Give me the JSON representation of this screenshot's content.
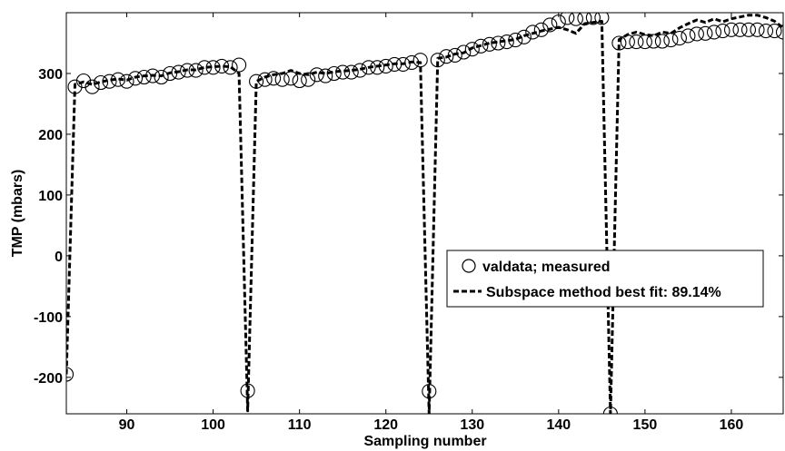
{
  "chart_data": {
    "type": "line",
    "title": "",
    "xlabel": "Sampling number",
    "ylabel": "TMP (mbars)",
    "xlim": [
      83,
      166
    ],
    "ylim": [
      -260,
      400
    ],
    "xticks": [
      90,
      100,
      110,
      120,
      130,
      140,
      150,
      160
    ],
    "yticks": [
      -200,
      -100,
      0,
      100,
      200,
      300
    ],
    "grid": false,
    "legend_position": "center-right",
    "series": [
      {
        "name": "valdata; measured",
        "style": "circle-markers",
        "color": "#000000",
        "x": [
          83,
          84,
          85,
          86,
          87,
          88,
          89,
          90,
          91,
          92,
          93,
          94,
          95,
          96,
          97,
          98,
          99,
          100,
          101,
          102,
          103,
          104,
          105,
          106,
          107,
          108,
          109,
          110,
          111,
          112,
          113,
          114,
          115,
          116,
          117,
          118,
          119,
          120,
          121,
          122,
          123,
          124,
          125,
          126,
          127,
          128,
          129,
          130,
          131,
          132,
          133,
          134,
          135,
          136,
          137,
          138,
          139,
          140,
          141,
          142,
          143,
          144,
          145,
          146,
          147,
          148,
          149,
          150,
          151,
          152,
          153,
          154,
          155,
          156,
          157,
          158,
          159,
          160,
          161,
          162,
          163,
          164,
          165,
          166
        ],
        "y": [
          -195,
          278,
          288,
          278,
          285,
          287,
          290,
          287,
          292,
          294,
          296,
          294,
          300,
          302,
          305,
          305,
          310,
          310,
          312,
          310,
          314,
          -222,
          287,
          290,
          292,
          290,
          292,
          288,
          290,
          298,
          296,
          300,
          302,
          302,
          305,
          310,
          310,
          312,
          315,
          315,
          318,
          322,
          -223,
          322,
          328,
          330,
          335,
          340,
          345,
          348,
          350,
          352,
          355,
          360,
          368,
          372,
          380,
          385,
          392,
          390,
          391,
          392,
          392,
          -260,
          350,
          352,
          352,
          352,
          353,
          353,
          355,
          358,
          362,
          365,
          366,
          368,
          370,
          372,
          372,
          372,
          372,
          370,
          370,
          368
        ]
      },
      {
        "name": "Subspace method best fit: 89.14%",
        "style": "dashed-line",
        "color": "#000000",
        "x": [
          83,
          84,
          85,
          86,
          87,
          88,
          89,
          90,
          91,
          92,
          93,
          94,
          95,
          96,
          97,
          98,
          99,
          100,
          101,
          102,
          103,
          104,
          105,
          106,
          107,
          108,
          109,
          110,
          111,
          112,
          113,
          114,
          115,
          116,
          117,
          118,
          119,
          120,
          121,
          122,
          123,
          124,
          125,
          126,
          127,
          128,
          129,
          130,
          131,
          132,
          133,
          134,
          135,
          136,
          137,
          138,
          139,
          140,
          141,
          142,
          143,
          144,
          145,
          146,
          147,
          148,
          149,
          150,
          151,
          152,
          153,
          154,
          155,
          156,
          157,
          158,
          159,
          160,
          161,
          162,
          163,
          164,
          165,
          166
        ],
        "y": [
          -195,
          282,
          286,
          282,
          286,
          289,
          291,
          289,
          294,
          296,
          297,
          296,
          301,
          303,
          306,
          306,
          310,
          311,
          312,
          311,
          300,
          -255,
          287,
          294,
          298,
          300,
          305,
          300,
          298,
          302,
          300,
          303,
          304,
          305,
          307,
          310,
          312,
          314,
          316,
          316,
          319,
          318,
          -260,
          325,
          327,
          332,
          334,
          342,
          346,
          350,
          352,
          354,
          356,
          362,
          366,
          370,
          373,
          376,
          372,
          366,
          382,
          384,
          386,
          -260,
          356,
          364,
          368,
          364,
          362,
          368,
          366,
          375,
          382,
          388,
          384,
          390,
          385,
          390,
          393,
          396,
          396,
          392,
          386,
          375
        ]
      }
    ]
  }
}
